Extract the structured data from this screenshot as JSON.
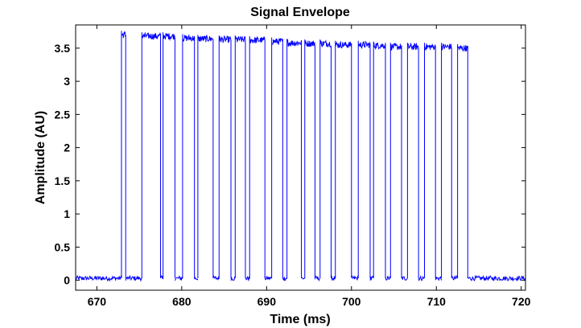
{
  "chart_data": {
    "type": "line",
    "title": "Signal Envelope",
    "xlabel": "Time (ms)",
    "ylabel": "Amplitude (AU)",
    "xlim": [
      667.5,
      720.5
    ],
    "ylim": [
      -0.15,
      3.85
    ],
    "xticks": [
      670,
      680,
      690,
      700,
      710,
      720
    ],
    "yticks": [
      0,
      0.5,
      1,
      1.5,
      2,
      2.5,
      3,
      3.5
    ],
    "xtick_labels": [
      "670",
      "680",
      "690",
      "700",
      "710",
      "720"
    ],
    "ytick_labels": [
      "0",
      "0.5",
      "1",
      "1.5",
      "2",
      "2.5",
      "3",
      "3.5"
    ],
    "grid": false,
    "legend": "none",
    "baseline_level": 0.03,
    "pulses": [
      {
        "start": 672.9,
        "end": 673.4,
        "level": 3.7
      },
      {
        "start": 675.3,
        "end": 677.5,
        "level": 3.68
      },
      {
        "start": 677.8,
        "end": 679.2,
        "level": 3.68
      },
      {
        "start": 680.1,
        "end": 681.5,
        "level": 3.65
      },
      {
        "start": 681.9,
        "end": 683.7,
        "level": 3.64
      },
      {
        "start": 684.4,
        "end": 685.8,
        "level": 3.63
      },
      {
        "start": 686.3,
        "end": 687.5,
        "level": 3.63
      },
      {
        "start": 688.0,
        "end": 689.8,
        "level": 3.62
      },
      {
        "start": 690.6,
        "end": 691.9,
        "level": 3.6
      },
      {
        "start": 692.4,
        "end": 694.1,
        "level": 3.58
      },
      {
        "start": 694.5,
        "end": 695.7,
        "level": 3.57
      },
      {
        "start": 696.3,
        "end": 697.6,
        "level": 3.57
      },
      {
        "start": 698.1,
        "end": 700.0,
        "level": 3.55
      },
      {
        "start": 700.8,
        "end": 702.2,
        "level": 3.55
      },
      {
        "start": 702.6,
        "end": 704.0,
        "level": 3.54
      },
      {
        "start": 704.6,
        "end": 705.9,
        "level": 3.52
      },
      {
        "start": 706.6,
        "end": 707.9,
        "level": 3.52
      },
      {
        "start": 708.6,
        "end": 709.9,
        "level": 3.52
      },
      {
        "start": 710.6,
        "end": 711.8,
        "level": 3.52
      },
      {
        "start": 712.5,
        "end": 713.7,
        "level": 3.5
      }
    ],
    "colors": {
      "line": "#0000ff",
      "axes": "#000000",
      "background": "#ffffff"
    }
  }
}
